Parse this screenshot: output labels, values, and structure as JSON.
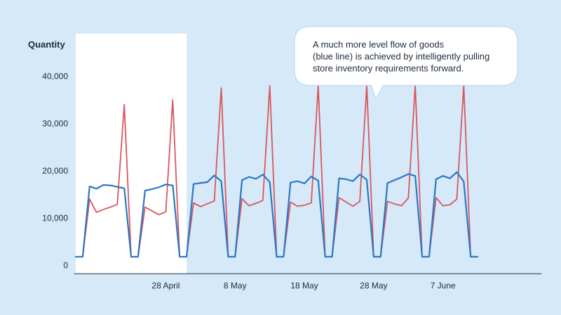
{
  "colors": {
    "background": "#d6e9f8",
    "highlight": "#ffffff",
    "axis": "#1c2b3a",
    "red_series": "#d9565e",
    "blue_series": "#2a78c2"
  },
  "chart_data": {
    "type": "line",
    "ylabel": "Quantity",
    "xlabel": "",
    "ylim": [
      0,
      45000
    ],
    "yticks": [
      {
        "value": 0,
        "label": "0"
      },
      {
        "value": 10000,
        "label": "10,000"
      },
      {
        "value": 20000,
        "label": "20,000"
      },
      {
        "value": 30000,
        "label": "30,000"
      },
      {
        "value": 40000,
        "label": "40,000"
      }
    ],
    "xlim": [
      0,
      67
    ],
    "xticks": [
      {
        "value": 13,
        "label": "28 April"
      },
      {
        "value": 23,
        "label": "8 May"
      },
      {
        "value": 33,
        "label": "18 May"
      },
      {
        "value": 43,
        "label": "28 May"
      },
      {
        "value": 53,
        "label": "7 June"
      }
    ],
    "highlight_range": [
      0,
      16
    ],
    "grid": false,
    "annotation": {
      "lines": [
        "A much more level flow of goods",
        "(blue line) is achieved by intelligently pulling",
        "store inventory requirements forward."
      ]
    },
    "series": [
      {
        "color": "#d9565e",
        "points": [
          [
            0,
            1800
          ],
          [
            1,
            1800
          ],
          [
            2,
            14000
          ],
          [
            3,
            11200
          ],
          [
            4,
            11800
          ],
          [
            5,
            12300
          ],
          [
            6,
            12900
          ],
          [
            7,
            34000
          ],
          [
            8,
            1800
          ],
          [
            9,
            1800
          ],
          [
            10,
            12300
          ],
          [
            11,
            11500
          ],
          [
            12,
            10700
          ],
          [
            13,
            11300
          ],
          [
            14,
            35000
          ],
          [
            15,
            1800
          ],
          [
            16,
            1800
          ],
          [
            17,
            13200
          ],
          [
            18,
            12400
          ],
          [
            19,
            13000
          ],
          [
            20,
            13600
          ],
          [
            21,
            37500
          ],
          [
            22,
            1800
          ],
          [
            23,
            1800
          ],
          [
            24,
            14100
          ],
          [
            25,
            12600
          ],
          [
            26,
            13100
          ],
          [
            27,
            13700
          ],
          [
            28,
            38000
          ],
          [
            29,
            1800
          ],
          [
            30,
            1800
          ],
          [
            31,
            13400
          ],
          [
            32,
            12500
          ],
          [
            33,
            12700
          ],
          [
            34,
            13200
          ],
          [
            35,
            38000
          ],
          [
            36,
            1800
          ],
          [
            37,
            1800
          ],
          [
            38,
            14300
          ],
          [
            39,
            13400
          ],
          [
            40,
            12500
          ],
          [
            41,
            13500
          ],
          [
            42,
            38000
          ],
          [
            43,
            1800
          ],
          [
            44,
            1800
          ],
          [
            45,
            13500
          ],
          [
            46,
            13000
          ],
          [
            47,
            12600
          ],
          [
            48,
            14200
          ],
          [
            49,
            38000
          ],
          [
            50,
            1800
          ],
          [
            51,
            1800
          ],
          [
            52,
            14300
          ],
          [
            53,
            12600
          ],
          [
            54,
            12800
          ],
          [
            55,
            14000
          ],
          [
            56,
            38000
          ],
          [
            57,
            1800
          ],
          [
            58,
            1800
          ]
        ]
      },
      {
        "color": "#2a78c2",
        "points": [
          [
            0,
            1800
          ],
          [
            1,
            1800
          ],
          [
            2,
            16700
          ],
          [
            3,
            16200
          ],
          [
            4,
            17000
          ],
          [
            5,
            16900
          ],
          [
            6,
            16600
          ],
          [
            7,
            16300
          ],
          [
            8,
            1800
          ],
          [
            9,
            1800
          ],
          [
            10,
            15800
          ],
          [
            11,
            16100
          ],
          [
            12,
            16500
          ],
          [
            13,
            17100
          ],
          [
            14,
            16900
          ],
          [
            15,
            1800
          ],
          [
            16,
            1800
          ],
          [
            17,
            17200
          ],
          [
            18,
            17400
          ],
          [
            19,
            17600
          ],
          [
            20,
            19000
          ],
          [
            21,
            17800
          ],
          [
            22,
            1800
          ],
          [
            23,
            1800
          ],
          [
            24,
            18000
          ],
          [
            25,
            18700
          ],
          [
            26,
            18300
          ],
          [
            27,
            19200
          ],
          [
            28,
            17600
          ],
          [
            29,
            1800
          ],
          [
            30,
            1800
          ],
          [
            31,
            17500
          ],
          [
            32,
            17800
          ],
          [
            33,
            17300
          ],
          [
            34,
            18800
          ],
          [
            35,
            17900
          ],
          [
            36,
            1800
          ],
          [
            37,
            1800
          ],
          [
            38,
            18400
          ],
          [
            39,
            18200
          ],
          [
            40,
            17800
          ],
          [
            41,
            19200
          ],
          [
            42,
            18100
          ],
          [
            43,
            1800
          ],
          [
            44,
            1800
          ],
          [
            45,
            17400
          ],
          [
            46,
            18000
          ],
          [
            47,
            18600
          ],
          [
            48,
            19300
          ],
          [
            49,
            18900
          ],
          [
            50,
            1800
          ],
          [
            51,
            1800
          ],
          [
            52,
            18200
          ],
          [
            53,
            18900
          ],
          [
            54,
            18400
          ],
          [
            55,
            19700
          ],
          [
            56,
            17700
          ],
          [
            57,
            1800
          ],
          [
            58,
            1800
          ]
        ]
      }
    ]
  }
}
